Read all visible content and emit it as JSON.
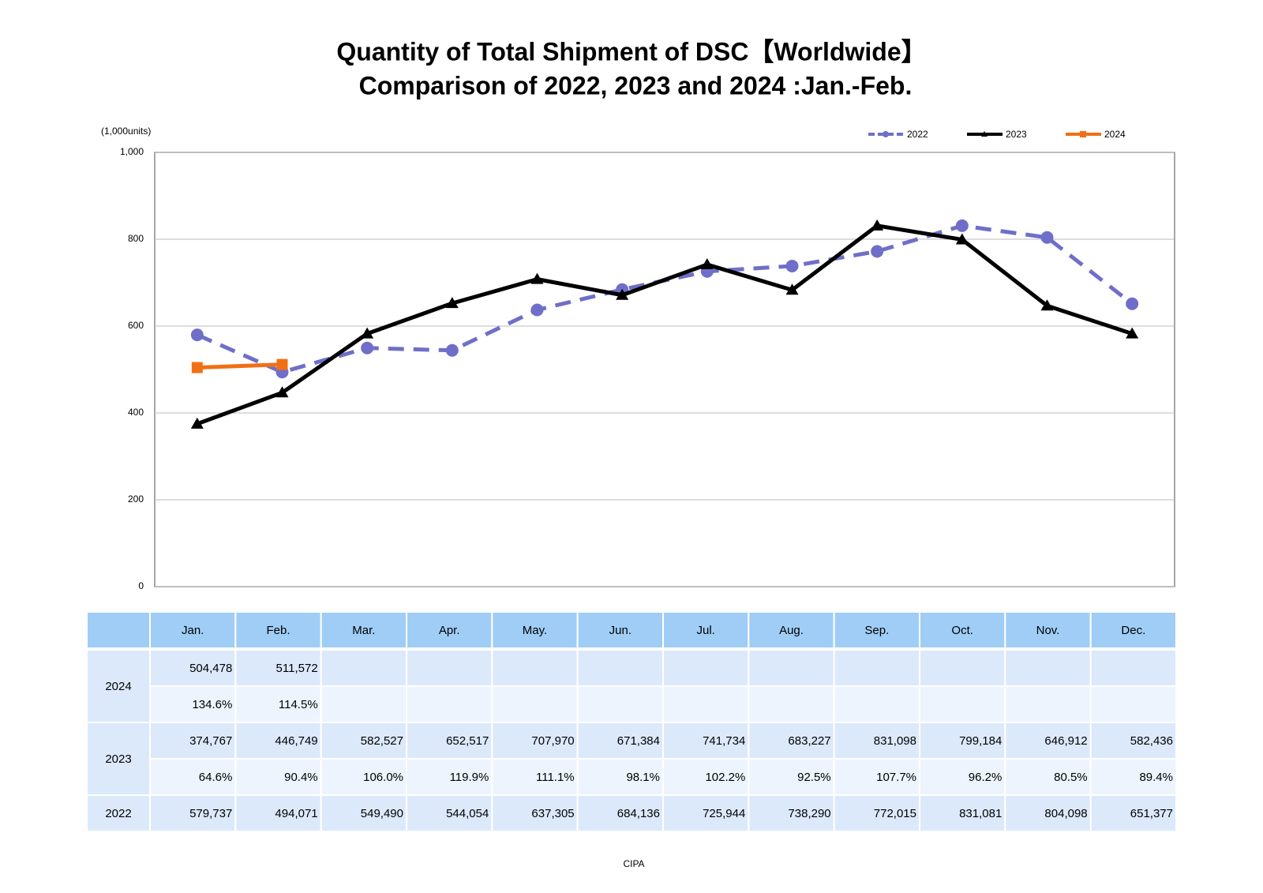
{
  "chart_data": {
    "type": "line",
    "title": "Quantity of Total Shipment of DSC【Worldwide】",
    "subtitle": "Comparison of 2022, 2023 and 2024 :Jan.-Feb.",
    "y_label": "(1,000units)",
    "source": "CIPA",
    "categories": [
      "Jan.",
      "Feb.",
      "Mar.",
      "Apr.",
      "May.",
      "Jun.",
      "Jul.",
      "Aug.",
      "Sep.",
      "Oct.",
      "Nov.",
      "Dec."
    ],
    "ylim": [
      0,
      1000
    ],
    "yticks": [
      0,
      200,
      400,
      600,
      800,
      {
        "value": 1000,
        "label": "1,000"
      }
    ],
    "grid": true,
    "legend": "top-right",
    "series": [
      {
        "name": "2022",
        "color": "#6f6fc9",
        "dash": true,
        "marker": "circle",
        "values": [
          579.737,
          494.071,
          549.49,
          544.054,
          637.305,
          684.136,
          725.944,
          738.29,
          772.015,
          831.081,
          804.098,
          651.377
        ],
        "value_labels": [
          "579,737",
          "494,071",
          "549,490",
          "544,054",
          "637,305",
          "684,136",
          "725,944",
          "738,290",
          "772,015",
          "831,081",
          "804,098",
          "651,377"
        ]
      },
      {
        "name": "2023",
        "color": "#000000",
        "dash": false,
        "marker": "triangle",
        "values": [
          374.767,
          446.749,
          582.527,
          652.517,
          707.97,
          671.384,
          741.734,
          683.227,
          831.098,
          799.184,
          646.912,
          582.436
        ],
        "value_labels": [
          "374,767",
          "446,749",
          "582,527",
          "652,517",
          "707,970",
          "671,384",
          "741,734",
          "683,227",
          "831,098",
          "799,184",
          "646,912",
          "582,436"
        ],
        "ratio_labels": [
          "64.6%",
          "90.4%",
          "106.0%",
          "119.9%",
          "111.1%",
          "98.1%",
          "102.2%",
          "92.5%",
          "107.7%",
          "96.2%",
          "80.5%",
          "89.4%"
        ]
      },
      {
        "name": "2024",
        "color": "#f07015",
        "dash": false,
        "marker": "square",
        "values": [
          504.478,
          511.572,
          null,
          null,
          null,
          null,
          null,
          null,
          null,
          null,
          null,
          null
        ],
        "value_labels": [
          "504,478",
          "511,572",
          null,
          null,
          null,
          null,
          null,
          null,
          null,
          null,
          null,
          null
        ],
        "ratio_labels": [
          "134.6%",
          "114.5%",
          null,
          null,
          null,
          null,
          null,
          null,
          null,
          null,
          null,
          null
        ]
      }
    ]
  }
}
